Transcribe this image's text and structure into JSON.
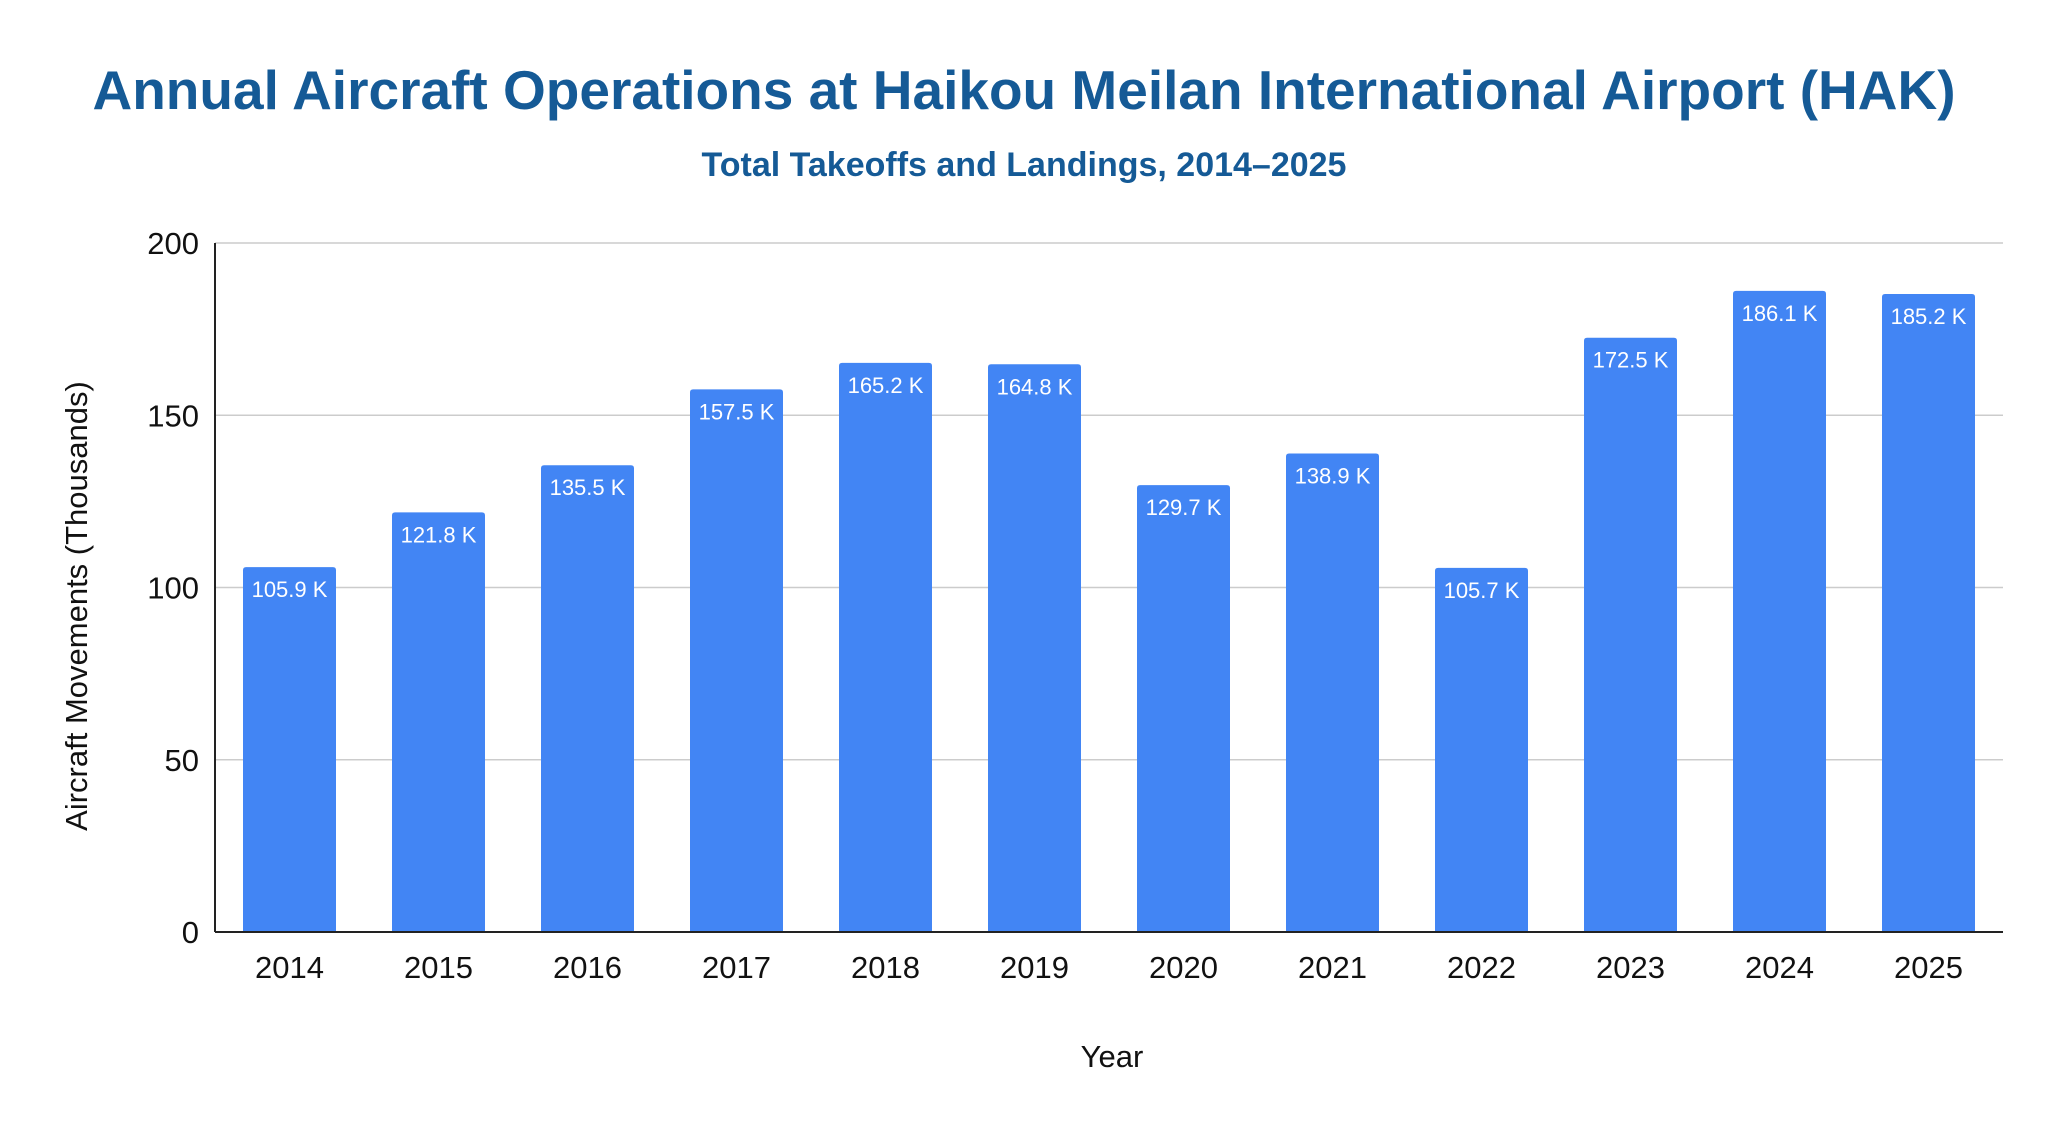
{
  "title": "Annual Aircraft Operations at Haikou Meilan International Airport (HAK)",
  "subtitle": "Total Takeoffs and Landings, 2014–2025",
  "colors": {
    "title": "#155a96",
    "bar": "#4285f4",
    "grid": "#cccccc",
    "axis": "#222222",
    "data_label": "#ffffff"
  },
  "chart_data": {
    "type": "bar",
    "title": "Annual Aircraft Operations at Haikou Meilan International Airport (HAK)",
    "subtitle": "Total Takeoffs and Landings, 2014–2025",
    "xlabel": "Year",
    "ylabel": "Aircraft Movements (Thousands)",
    "categories": [
      "2014",
      "2015",
      "2016",
      "2017",
      "2018",
      "2019",
      "2020",
      "2021",
      "2022",
      "2023",
      "2024",
      "2025"
    ],
    "values": [
      105.9,
      121.8,
      135.5,
      157.5,
      165.2,
      164.8,
      129.7,
      138.9,
      105.7,
      172.5,
      186.1,
      185.2
    ],
    "data_labels": [
      "105.9 K",
      "121.8 K",
      "135.5 K",
      "157.5 K",
      "165.2 K",
      "164.8 K",
      "129.7 K",
      "138.9 K",
      "105.7 K",
      "172.5 K",
      "186.1 K",
      "185.2 K"
    ],
    "ylim": [
      0,
      200
    ],
    "yticks": [
      0,
      50,
      100,
      150,
      200
    ],
    "ytick_labels": [
      "0",
      "50",
      "100",
      "150",
      "200"
    ],
    "grid": true,
    "legend": "none"
  }
}
